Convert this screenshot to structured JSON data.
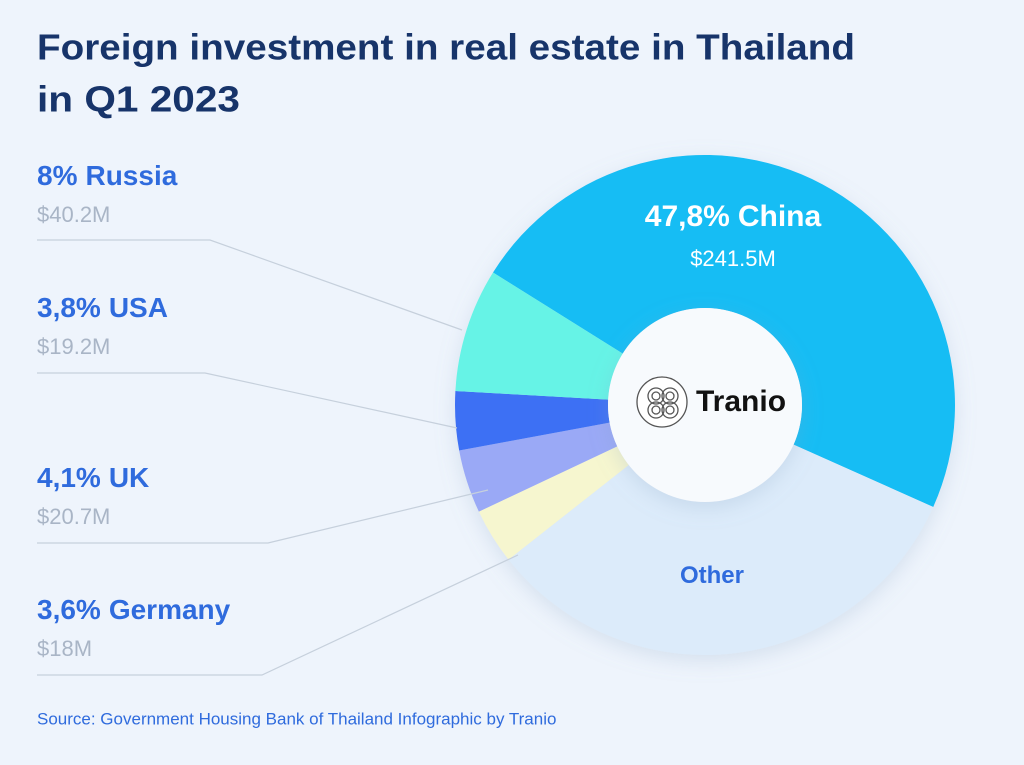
{
  "chart_data": {
    "type": "pie",
    "title": [
      "Foreign investment in real estate in Thailand",
      "in Q1 2023"
    ],
    "categories": [
      "China",
      "Other",
      "Germany",
      "UK",
      "USA",
      "Russia"
    ],
    "values": [
      47.8,
      32.7,
      3.6,
      4.1,
      3.8,
      8
    ],
    "value_labels": [
      "47,8%",
      null,
      "3,6%",
      "4,1%",
      "3,8%",
      "8%"
    ],
    "amounts": [
      241500000,
      null,
      18000000,
      20700000,
      19200000,
      40200000
    ],
    "amount_labels": [
      "$241.5M",
      null,
      "$18M",
      "$20.7M",
      "$19.2M",
      "$40.2M"
    ],
    "colors": [
      "#17bdf4",
      "#dcebfa",
      "#f6f6cf",
      "#9aa9f6",
      "#3c6ff4",
      "#66f3e6"
    ],
    "logo": "Tranio",
    "source": "Source: Government Housing Bank of Thailand Infographic by Tranio"
  }
}
